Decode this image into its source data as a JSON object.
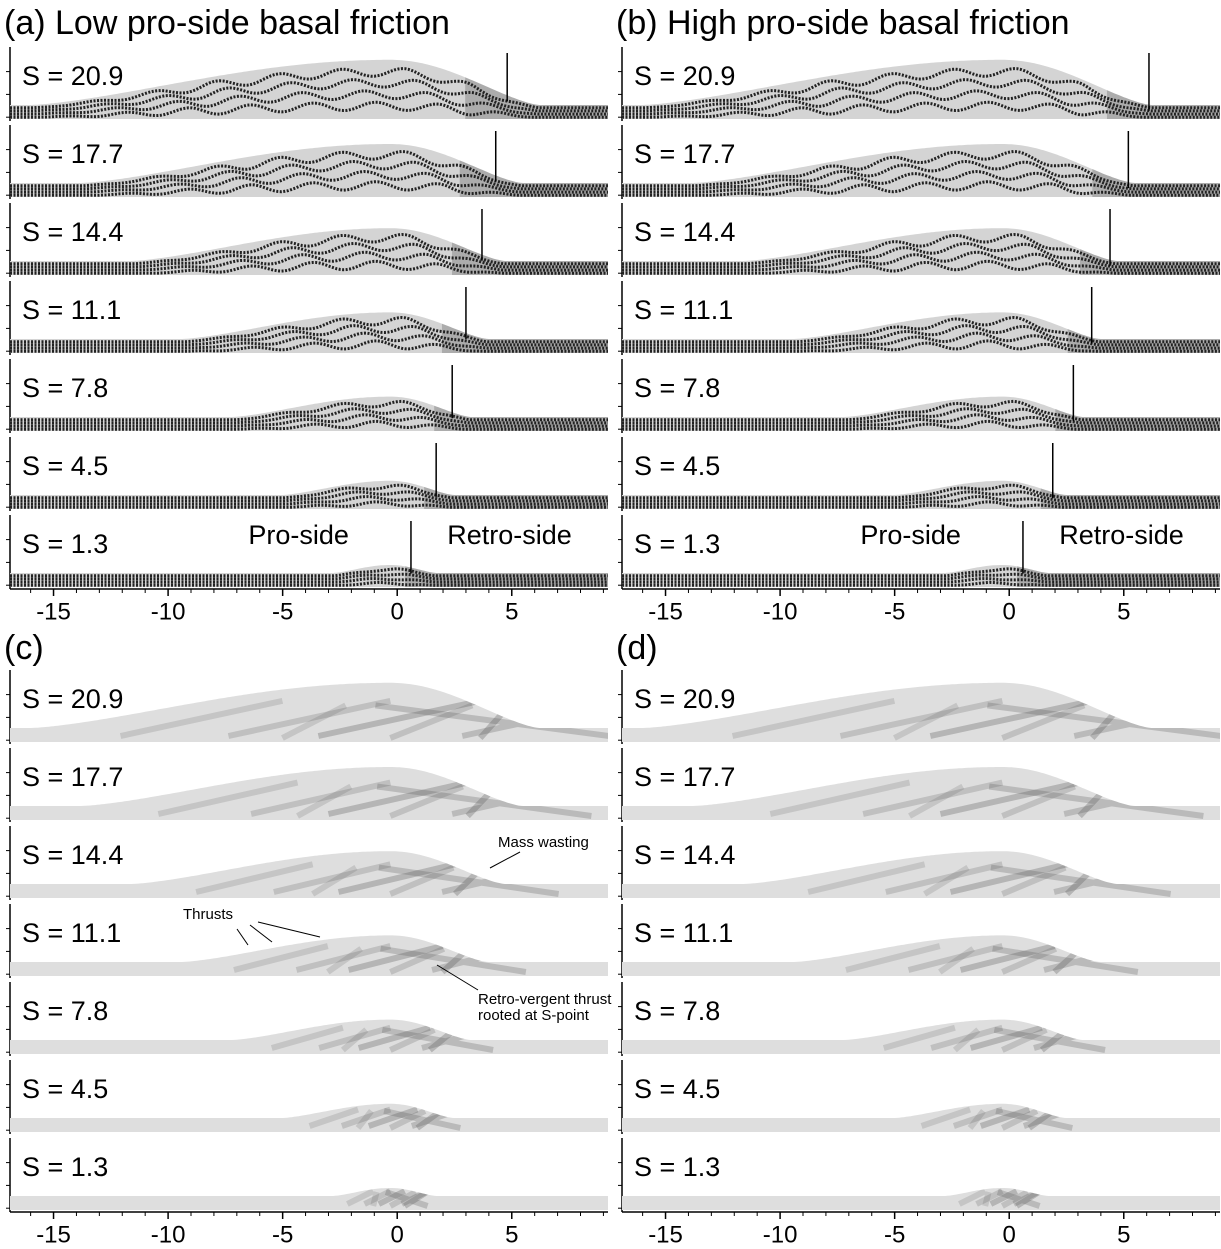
{
  "panels": [
    {
      "title": "(a) Low pro-side basal friction",
      "strips": [
        "S = 20.9",
        "S = 17.7",
        "S = 14.4",
        "S = 11.1",
        "S = 7.8",
        "S = 4.5",
        "S = 1.3"
      ],
      "s_point_x": [
        4.8,
        4.3,
        3.7,
        3.0,
        2.4,
        1.7,
        0.6
      ],
      "side_labels": [
        "Pro-side",
        "Retro-side"
      ],
      "xlim": [
        -16.9,
        9.2
      ],
      "xticks": [
        -15,
        -10,
        -5,
        0,
        5
      ]
    },
    {
      "title": "(b) High pro-side basal friction",
      "strips": [
        "S = 20.9",
        "S = 17.7",
        "S = 14.4",
        "S = 11.1",
        "S = 7.8",
        "S = 4.5",
        "S = 1.3"
      ],
      "s_point_x": [
        6.1,
        5.2,
        4.4,
        3.6,
        2.8,
        1.9,
        0.6
      ],
      "side_labels": [
        "Pro-side",
        "Retro-side"
      ],
      "xlim": [
        -16.9,
        9.2
      ],
      "xticks": [
        -15,
        -10,
        -5,
        0,
        5
      ]
    },
    {
      "title": "(c)",
      "strips": [
        "S = 20.9",
        "S = 17.7",
        "S = 14.4",
        "S = 11.1",
        "S = 7.8",
        "S = 4.5",
        "S = 1.3"
      ],
      "annotations": [
        "Mass wasting",
        "Thrusts",
        "Retro-vergent thrust",
        "rooted at S-point"
      ],
      "xlim": [
        -16.9,
        9.2
      ],
      "xticks": [
        -15,
        -10,
        -5,
        0,
        5
      ]
    },
    {
      "title": "(d)",
      "strips": [
        "S = 20.9",
        "S = 17.7",
        "S = 14.4",
        "S = 11.1",
        "S = 7.8",
        "S = 4.5",
        "S = 1.3"
      ],
      "xlim": [
        -16.9,
        9.2
      ],
      "xticks": [
        -15,
        -10,
        -5,
        0,
        5
      ]
    }
  ]
}
